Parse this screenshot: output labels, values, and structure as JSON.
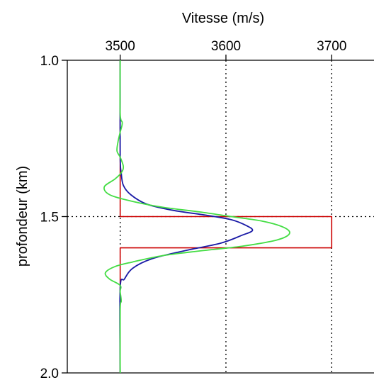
{
  "chart_data": {
    "type": "line",
    "title": "",
    "xlabel": "Vitesse (m/s)",
    "ylabel": "profondeur (km)",
    "x_axis_position": "top",
    "y_inverted": true,
    "xlim": [
      3450,
      3740
    ],
    "ylim": [
      1.0,
      2.0
    ],
    "xticks": [
      3500,
      3600,
      3700
    ],
    "xtick_labels": [
      "3500",
      "3600",
      "3700"
    ],
    "yticks": [
      1.0,
      1.5,
      2.0
    ],
    "ytick_labels": [
      "1.0",
      "1.5",
      "2.0"
    ],
    "guide_lines": {
      "x": [
        3500,
        3600,
        3700
      ],
      "y": [
        1.5
      ],
      "style": "dotted"
    },
    "grid": false,
    "legend": "none",
    "series": [
      {
        "color": "#cc0000",
        "points": [
          [
            3500,
            1.0
          ],
          [
            3500,
            1.5
          ],
          [
            3700,
            1.5
          ],
          [
            3700,
            1.6
          ],
          [
            3500,
            1.6
          ],
          [
            3500,
            2.0
          ]
        ]
      },
      {
        "color": "#1a1aa6",
        "points": [
          [
            3500,
            1.0
          ],
          [
            3500,
            1.3
          ],
          [
            3501,
            1.36
          ],
          [
            3503,
            1.4
          ],
          [
            3510,
            1.43
          ],
          [
            3525,
            1.46
          ],
          [
            3550,
            1.48
          ],
          [
            3580,
            1.495
          ],
          [
            3605,
            1.51
          ],
          [
            3620,
            1.53
          ],
          [
            3625,
            1.545
          ],
          [
            3615,
            1.56
          ],
          [
            3595,
            1.585
          ],
          [
            3560,
            1.61
          ],
          [
            3530,
            1.635
          ],
          [
            3512,
            1.665
          ],
          [
            3504,
            1.7
          ],
          [
            3500,
            1.73
          ],
          [
            3500,
            2.0
          ]
        ]
      },
      {
        "color": "#44dd44",
        "points": [
          [
            3500,
            1.0
          ],
          [
            3500,
            1.17
          ],
          [
            3502,
            1.2
          ],
          [
            3500,
            1.23
          ],
          [
            3498,
            1.26
          ],
          [
            3497,
            1.29
          ],
          [
            3500,
            1.31
          ],
          [
            3503,
            1.34
          ],
          [
            3501,
            1.36
          ],
          [
            3495,
            1.38
          ],
          [
            3485,
            1.405
          ],
          [
            3490,
            1.43
          ],
          [
            3510,
            1.45
          ],
          [
            3540,
            1.47
          ],
          [
            3575,
            1.485
          ],
          [
            3605,
            1.5
          ],
          [
            3635,
            1.515
          ],
          [
            3655,
            1.535
          ],
          [
            3660,
            1.555
          ],
          [
            3648,
            1.575
          ],
          [
            3615,
            1.595
          ],
          [
            3575,
            1.61
          ],
          [
            3540,
            1.625
          ],
          [
            3512,
            1.645
          ],
          [
            3495,
            1.66
          ],
          [
            3486,
            1.68
          ],
          [
            3490,
            1.7
          ],
          [
            3500,
            1.72
          ],
          [
            3500,
            1.74
          ],
          [
            3501,
            1.77
          ],
          [
            3500,
            1.8
          ],
          [
            3500,
            2.0
          ]
        ]
      }
    ]
  }
}
